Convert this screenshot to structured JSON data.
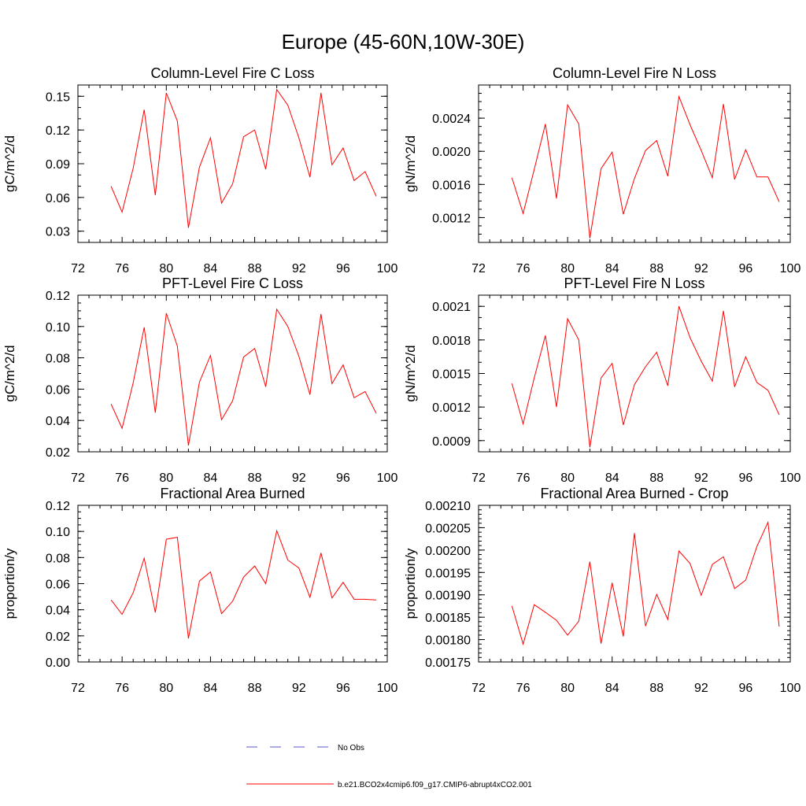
{
  "title": "Europe (45-60N,10W-30E)",
  "chart_data": [
    {
      "type": "line",
      "title": "Column-Level Fire C Loss",
      "ylabel": "gC/m^2/d",
      "xlabel": "",
      "xlim": [
        72,
        100
      ],
      "xticks": [
        "72",
        "76",
        "80",
        "84",
        "88",
        "92",
        "96",
        "100"
      ],
      "ylim": [
        0.02,
        0.16
      ],
      "yticks": [
        "0.03",
        "0.06",
        "0.09",
        "0.12",
        "0.15"
      ],
      "ytick_values": [
        0.03,
        0.06,
        0.09,
        0.12,
        0.15
      ],
      "yminor": 0.01,
      "x": [
        75,
        76,
        77,
        78,
        79,
        80,
        81,
        82,
        83,
        84,
        85,
        86,
        87,
        88,
        89,
        90,
        91,
        92,
        93,
        94,
        95,
        96,
        97,
        98,
        99
      ],
      "series": [
        {
          "name": "b.e21.BCO2x4cmip6.f09_g17.CMIP6-abrupt4xCO2.001",
          "values": [
            0.07,
            0.047,
            0.086,
            0.138,
            0.062,
            0.153,
            0.128,
            0.033,
            0.087,
            0.113,
            0.055,
            0.072,
            0.114,
            0.12,
            0.085,
            0.156,
            0.142,
            0.113,
            0.078,
            0.153,
            0.089,
            0.104,
            0.075,
            0.083,
            0.061
          ]
        }
      ]
    },
    {
      "type": "line",
      "title": "Column-Level Fire N Loss",
      "ylabel": "gN/m^2/d",
      "xlabel": "",
      "xlim": [
        72,
        100
      ],
      "xticks": [
        "72",
        "76",
        "80",
        "84",
        "88",
        "92",
        "96",
        "100"
      ],
      "ylim": [
        0.0009,
        0.0028
      ],
      "yticks": [
        "0.0012",
        "0.0016",
        "0.0020",
        "0.0024"
      ],
      "ytick_values": [
        0.0012,
        0.0016,
        0.002,
        0.0024
      ],
      "yminor": 0.0001,
      "x": [
        75,
        76,
        77,
        78,
        79,
        80,
        81,
        82,
        83,
        84,
        85,
        86,
        87,
        88,
        89,
        90,
        91,
        92,
        93,
        94,
        95,
        96,
        97,
        98,
        99
      ],
      "series": [
        {
          "name": "b.e21.BCO2x4cmip6.f09_g17.CMIP6-abrupt4xCO2.001",
          "values": [
            0.00168,
            0.00125,
            0.00178,
            0.00233,
            0.00143,
            0.00256,
            0.00233,
            0.00095,
            0.00179,
            0.00199,
            0.00124,
            0.00167,
            0.00201,
            0.00213,
            0.0017,
            0.00266,
            0.00232,
            0.00201,
            0.00168,
            0.00257,
            0.00166,
            0.00202,
            0.00169,
            0.00169,
            0.00139
          ]
        }
      ]
    },
    {
      "type": "line",
      "title": "PFT-Level Fire C Loss",
      "ylabel": "gC/m^2/d",
      "xlabel": "",
      "xlim": [
        72,
        100
      ],
      "xticks": [
        "72",
        "76",
        "80",
        "84",
        "88",
        "92",
        "96",
        "100"
      ],
      "ylim": [
        0.02,
        0.12
      ],
      "yticks": [
        "0.02",
        "0.04",
        "0.06",
        "0.08",
        "0.10",
        "0.12"
      ],
      "ytick_values": [
        0.02,
        0.04,
        0.06,
        0.08,
        0.1,
        0.12
      ],
      "yminor": 0.005,
      "x": [
        75,
        76,
        77,
        78,
        79,
        80,
        81,
        82,
        83,
        84,
        85,
        86,
        87,
        88,
        89,
        90,
        91,
        92,
        93,
        94,
        95,
        96,
        97,
        98,
        99
      ],
      "series": [
        {
          "name": "b.e21.BCO2x4cmip6.f09_g17.CMIP6-abrupt4xCO2.001",
          "values": [
            0.0505,
            0.035,
            0.064,
            0.0995,
            0.045,
            0.1085,
            0.0875,
            0.024,
            0.0645,
            0.0815,
            0.0405,
            0.0525,
            0.0805,
            0.086,
            0.0615,
            0.111,
            0.1,
            0.081,
            0.0565,
            0.108,
            0.0635,
            0.0755,
            0.0545,
            0.0585,
            0.0445
          ]
        }
      ]
    },
    {
      "type": "line",
      "title": "PFT-Level Fire N Loss",
      "ylabel": "gN/m^2/d",
      "xlabel": "",
      "xlim": [
        72,
        100
      ],
      "xticks": [
        "72",
        "76",
        "80",
        "84",
        "88",
        "92",
        "96",
        "100"
      ],
      "ylim": [
        0.0008,
        0.0022
      ],
      "yticks": [
        "0.0009",
        "0.0012",
        "0.0015",
        "0.0018",
        "0.0021"
      ],
      "ytick_values": [
        0.0009,
        0.0012,
        0.0015,
        0.0018,
        0.0021
      ],
      "yminor": 0.0001,
      "x": [
        75,
        76,
        77,
        78,
        79,
        80,
        81,
        82,
        83,
        84,
        85,
        86,
        87,
        88,
        89,
        90,
        91,
        92,
        93,
        94,
        95,
        96,
        97,
        98,
        99
      ],
      "series": [
        {
          "name": "b.e21.BCO2x4cmip6.f09_g17.CMIP6-abrupt4xCO2.001",
          "values": [
            0.00141,
            0.00105,
            0.00146,
            0.00184,
            0.0012,
            0.00199,
            0.0018,
            0.00084,
            0.00146,
            0.00159,
            0.00104,
            0.0014,
            0.00156,
            0.00169,
            0.00139,
            0.0021,
            0.00182,
            0.00161,
            0.00143,
            0.00206,
            0.00138,
            0.00165,
            0.00142,
            0.00135,
            0.00113
          ]
        }
      ]
    },
    {
      "type": "line",
      "title": "Fractional Area Burned",
      "ylabel": "proportion/y",
      "xlabel": "",
      "xlim": [
        72,
        100
      ],
      "xticks": [
        "72",
        "76",
        "80",
        "84",
        "88",
        "92",
        "96",
        "100"
      ],
      "ylim": [
        0.0,
        0.12
      ],
      "yticks": [
        "0.00",
        "0.02",
        "0.04",
        "0.06",
        "0.08",
        "0.10",
        "0.12"
      ],
      "ytick_values": [
        0.0,
        0.02,
        0.04,
        0.06,
        0.08,
        0.1,
        0.12
      ],
      "yminor": 0.005,
      "x": [
        75,
        76,
        77,
        78,
        79,
        80,
        81,
        82,
        83,
        84,
        85,
        86,
        87,
        88,
        89,
        90,
        91,
        92,
        93,
        94,
        95,
        96,
        97,
        98,
        99
      ],
      "series": [
        {
          "name": "b.e21.BCO2x4cmip6.f09_g17.CMIP6-abrupt4xCO2.001",
          "values": [
            0.0475,
            0.0365,
            0.053,
            0.0795,
            0.038,
            0.094,
            0.0955,
            0.018,
            0.062,
            0.069,
            0.037,
            0.0465,
            0.065,
            0.0735,
            0.06,
            0.1005,
            0.078,
            0.072,
            0.0495,
            0.0835,
            0.049,
            0.061,
            0.048,
            0.048,
            0.0475
          ]
        }
      ]
    },
    {
      "type": "line",
      "title": "Fractional Area Burned - Crop",
      "ylabel": "proportion/y",
      "xlabel": "",
      "xlim": [
        72,
        100
      ],
      "xticks": [
        "72",
        "76",
        "80",
        "84",
        "88",
        "92",
        "96",
        "100"
      ],
      "ylim": [
        0.00175,
        0.0021
      ],
      "yticks": [
        "0.00175",
        "0.00180",
        "0.00185",
        "0.00190",
        "0.00195",
        "0.00200",
        "0.00205",
        "0.00210"
      ],
      "ytick_values": [
        0.00175,
        0.0018,
        0.00185,
        0.0019,
        0.00195,
        0.002,
        0.00205,
        0.0021
      ],
      "yminor": 1e-05,
      "x": [
        75,
        76,
        77,
        78,
        79,
        80,
        81,
        82,
        83,
        84,
        85,
        86,
        87,
        88,
        89,
        90,
        91,
        92,
        93,
        94,
        95,
        96,
        97,
        98,
        99
      ],
      "series": [
        {
          "name": "b.e21.BCO2x4cmip6.f09_g17.CMIP6-abrupt4xCO2.001",
          "values": [
            0.001875,
            0.00179,
            0.001878,
            0.001861,
            0.001843,
            0.00181,
            0.001841,
            0.001974,
            0.001791,
            0.001927,
            0.001807,
            0.002038,
            0.00183,
            0.001901,
            0.001845,
            0.001998,
            0.00197,
            0.001899,
            0.001968,
            0.001985,
            0.001914,
            0.001933,
            0.002008,
            0.002062,
            0.001829
          ]
        }
      ]
    }
  ],
  "legend": {
    "items": [
      {
        "label": "No Obs",
        "color": "#5a5ac8",
        "style": "dashed"
      },
      {
        "label": "b.e21.BCO2x4cmip6.f09_g17.CMIP6-abrupt4xCO2.001",
        "color": "#ff0000",
        "style": "solid"
      }
    ]
  }
}
